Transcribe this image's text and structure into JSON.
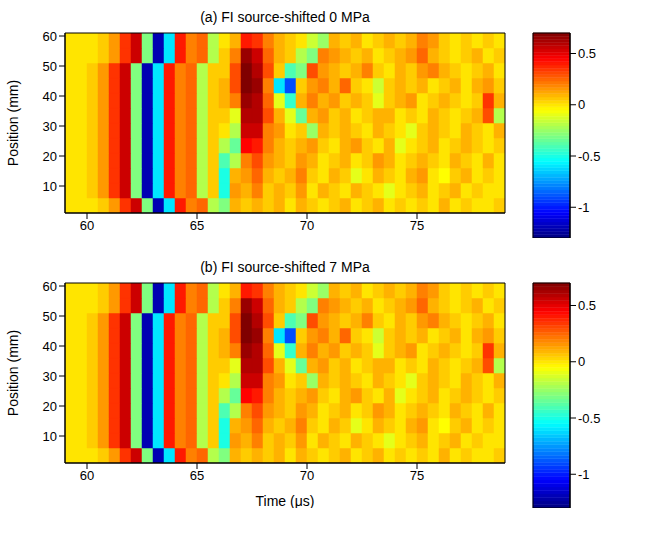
{
  "chart_data": [
    {
      "type": "heatmap",
      "title": "(a) FI source-shifted 0 MPa",
      "y_label": "Position (mm)",
      "xlim": [
        59,
        79
      ],
      "xticks": [
        60,
        65,
        70,
        75
      ],
      "ylim": [
        1,
        61
      ],
      "yticks": [
        10,
        20,
        30,
        40,
        50,
        60
      ],
      "x": [
        59.25,
        59.75,
        60.25,
        60.75,
        61.25,
        61.75,
        62.25,
        62.75,
        63.25,
        63.75,
        64.25,
        64.75,
        65.25,
        65.75,
        66.25,
        66.75,
        67.25,
        67.75,
        68.25,
        68.75,
        69.25,
        69.75,
        70.25,
        70.75,
        71.25,
        71.75,
        72.25,
        72.75,
        73.25,
        73.75,
        74.25,
        74.75,
        75.25,
        75.75,
        76.25,
        76.75,
        77.25,
        77.75,
        78.25,
        78.75
      ],
      "y": [
        3.5,
        8.5,
        13.5,
        18.5,
        23.5,
        28.5,
        33.5,
        38.5,
        43.5,
        48.5,
        53.5,
        58.5
      ],
      "values": [
        [
          0,
          0,
          0,
          0.05,
          0.15,
          0.35,
          0.55,
          -0.3,
          -1.2,
          -0.6,
          0.4,
          0.2,
          0.25,
          -0.2,
          -0.3,
          0.1,
          0.05,
          0.1,
          0.05,
          0.1,
          0,
          0.1,
          0.05,
          0,
          0.05,
          0.1,
          0,
          0.05,
          0.1,
          0,
          0.05,
          0,
          0.05,
          0,
          0.1,
          0,
          0.05,
          0,
          0,
          0.05
        ],
        [
          0,
          0,
          0.05,
          0.15,
          0.35,
          0.55,
          -0.3,
          -1.2,
          -0.6,
          0.4,
          0.2,
          0.25,
          -0.2,
          0.05,
          -0.5,
          0.15,
          0.1,
          0.2,
          0.05,
          0.1,
          0.05,
          0.15,
          0,
          0.1,
          0.05,
          0,
          0.1,
          0.05,
          0,
          -0.1,
          0,
          0.05,
          0.1,
          0,
          0.05,
          0.1,
          0,
          0.05,
          0,
          0
        ],
        [
          0,
          0,
          0.05,
          0.15,
          0.35,
          0.55,
          -0.3,
          -1.2,
          -0.6,
          0.4,
          0.2,
          0.25,
          -0.2,
          0.05,
          -0.5,
          0.1,
          0.15,
          0.25,
          0.1,
          0.05,
          0.1,
          0.2,
          0.05,
          0,
          0.1,
          0.05,
          -0.1,
          0,
          0.1,
          0.05,
          0,
          0.1,
          0.15,
          0,
          -0.05,
          0.05,
          0.1,
          0,
          0.05,
          0
        ],
        [
          0,
          0,
          0.05,
          0.15,
          0.35,
          0.55,
          -0.3,
          -1.2,
          -0.6,
          0.4,
          0.2,
          0.25,
          -0.2,
          0.05,
          -0.4,
          -0.2,
          0.2,
          0.3,
          0.15,
          0.1,
          0.05,
          0.15,
          0.1,
          0,
          0.05,
          0.1,
          0,
          0.05,
          0.15,
          0.1,
          0,
          0.05,
          0.1,
          0.05,
          0,
          0.1,
          0.05,
          0,
          0.1,
          0
        ],
        [
          0,
          0,
          0.05,
          0.15,
          0.35,
          0.55,
          -0.3,
          -1.2,
          -0.6,
          0.4,
          0.2,
          0.25,
          -0.2,
          0.05,
          -0.2,
          -0.35,
          0.45,
          0.4,
          0.2,
          0.1,
          0.05,
          0.1,
          0.15,
          0.05,
          0,
          0.1,
          0.15,
          0.05,
          0,
          0.1,
          -0.1,
          0,
          0.05,
          0.1,
          0,
          0.05,
          0.1,
          0.05,
          0,
          0.05
        ],
        [
          0,
          0,
          0.05,
          0.15,
          0.35,
          0.55,
          -0.3,
          -1.2,
          -0.6,
          0.4,
          0.2,
          0.25,
          -0.2,
          0.05,
          0,
          -0.2,
          0.55,
          0.55,
          0.2,
          0.15,
          0,
          0.05,
          -0.25,
          0.1,
          0.05,
          0.1,
          0.05,
          0,
          0.1,
          0.05,
          0,
          -0.1,
          0.05,
          0.1,
          0.05,
          0,
          0.1,
          0.05,
          0,
          0.1
        ],
        [
          0,
          0,
          0.05,
          0.15,
          0.35,
          0.55,
          -0.3,
          -1.2,
          -0.6,
          0.4,
          0.2,
          0.25,
          -0.2,
          0.05,
          0.05,
          -0.1,
          0.6,
          0.6,
          0.3,
          0.1,
          -0.1,
          -0.35,
          0.1,
          0.15,
          0.05,
          0.1,
          0,
          0.05,
          0.1,
          0.1,
          0,
          0.05,
          0,
          0.1,
          0.05,
          0,
          0.05,
          0.1,
          0.3,
          -0.2
        ],
        [
          0,
          0,
          0.05,
          0.15,
          0.35,
          0.55,
          -0.3,
          -1.2,
          -0.6,
          0.4,
          0.2,
          0.25,
          -0.2,
          0.05,
          0.1,
          0.2,
          0.65,
          0.6,
          0.25,
          -0.1,
          -0.45,
          0.1,
          0.2,
          0.1,
          0.15,
          0.05,
          0.1,
          0.05,
          -0.1,
          0.05,
          0.1,
          0.15,
          0,
          0.05,
          0.1,
          0.05,
          0,
          0.05,
          0.35,
          0.1
        ],
        [
          0,
          0,
          0.05,
          0.15,
          0.35,
          0.55,
          -0.3,
          -1.2,
          -0.6,
          0.4,
          0.2,
          0.25,
          -0.2,
          0.05,
          0.1,
          0.3,
          0.7,
          0.65,
          0.2,
          -0.6,
          -0.9,
          0.05,
          0.15,
          0.2,
          0.1,
          0.25,
          0.05,
          0,
          -0.15,
          0.05,
          0.1,
          0.05,
          0.1,
          0,
          0.05,
          0.1,
          0,
          0.1,
          0.15,
          0.05
        ],
        [
          0,
          0,
          0.05,
          0.15,
          0.35,
          0.55,
          -0.3,
          -1.2,
          -0.6,
          0.4,
          0.2,
          0.25,
          -0.2,
          0.05,
          0.05,
          0.3,
          0.7,
          0.6,
          0.3,
          0.05,
          -0.4,
          -0.3,
          0.3,
          0.15,
          0.1,
          0.05,
          0.1,
          0.2,
          0.05,
          0,
          0.1,
          0.05,
          0.15,
          0.2,
          0.1,
          0.05,
          0,
          0.05,
          0.1,
          0
        ],
        [
          0,
          0,
          0,
          0.05,
          0.15,
          0.35,
          0.55,
          -0.3,
          -1.2,
          -0.6,
          0.4,
          0.2,
          0.25,
          -0.2,
          0.05,
          0.2,
          0.65,
          0.55,
          0.25,
          0.1,
          0.05,
          -0.2,
          -0.3,
          0.2,
          0.15,
          0.1,
          0.05,
          0.1,
          0,
          0.05,
          0.1,
          0.15,
          0.25,
          0.1,
          0.05,
          0,
          0.05,
          0.1,
          0,
          0.05
        ],
        [
          0,
          0,
          0,
          0.05,
          0.15,
          0.35,
          0.55,
          -0.3,
          -1.2,
          -0.6,
          0.4,
          0.2,
          0.25,
          -0.2,
          0,
          0.1,
          0.4,
          0.35,
          0.2,
          0.1,
          0.05,
          0,
          -0.15,
          -0.25,
          0.1,
          0.05,
          0.1,
          0,
          0.05,
          0.1,
          0.05,
          0.1,
          0.2,
          0.15,
          0.05,
          0,
          0.05,
          0,
          0.05,
          0
        ]
      ],
      "colorbar": {
        "range": [
          -1.3,
          0.7
        ],
        "ticks": [
          -1,
          -0.5,
          0,
          0.5
        ]
      }
    },
    {
      "type": "heatmap",
      "title": "(b) FI source-shifted 7 MPa",
      "x_label": "Time (μs)",
      "y_label": "Position (mm)",
      "xlim": [
        59,
        79
      ],
      "xticks": [
        60,
        65,
        70,
        75
      ],
      "ylim": [
        1,
        61
      ],
      "yticks": [
        10,
        20,
        30,
        40,
        50,
        60
      ],
      "x": [
        59.25,
        59.75,
        60.25,
        60.75,
        61.25,
        61.75,
        62.25,
        62.75,
        63.25,
        63.75,
        64.25,
        64.75,
        65.25,
        65.75,
        66.25,
        66.75,
        67.25,
        67.75,
        68.25,
        68.75,
        69.25,
        69.75,
        70.25,
        70.75,
        71.25,
        71.75,
        72.25,
        72.75,
        73.25,
        73.75,
        74.25,
        74.75,
        75.25,
        75.75,
        76.25,
        76.75,
        77.25,
        77.75,
        78.25,
        78.75
      ],
      "y": [
        3.5,
        8.5,
        13.5,
        18.5,
        23.5,
        28.5,
        33.5,
        38.5,
        43.5,
        48.5,
        53.5,
        58.5
      ],
      "values": [
        [
          0,
          0,
          0,
          0.05,
          0.15,
          0.35,
          0.55,
          -0.3,
          -1.2,
          -0.6,
          0.4,
          0.2,
          0.25,
          -0.2,
          -0.3,
          0.1,
          0.05,
          0.1,
          0.05,
          0.1,
          0,
          0.1,
          0.05,
          0,
          0.05,
          0.1,
          0,
          0.05,
          0.1,
          0,
          0.05,
          0,
          0.05,
          0,
          0.1,
          0,
          0.05,
          0,
          0,
          0.05
        ],
        [
          0,
          0,
          0.05,
          0.15,
          0.35,
          0.55,
          -0.3,
          -1.2,
          -0.6,
          0.4,
          0.2,
          0.25,
          -0.2,
          0.05,
          -0.5,
          0.15,
          0.1,
          0.2,
          0.05,
          0.1,
          0.05,
          0.15,
          0,
          0.1,
          0.05,
          0,
          0.1,
          0.05,
          0,
          -0.1,
          0,
          0.05,
          0.1,
          0,
          0.05,
          0.1,
          0,
          0.05,
          0,
          0
        ],
        [
          0,
          0,
          0.05,
          0.15,
          0.35,
          0.55,
          -0.3,
          -1.2,
          -0.6,
          0.4,
          0.2,
          0.25,
          -0.2,
          0.05,
          -0.5,
          0.1,
          0.15,
          0.25,
          0.1,
          0.05,
          0.1,
          0.2,
          0.05,
          0,
          0.1,
          0.05,
          -0.1,
          0,
          0.1,
          0.05,
          0,
          0.1,
          0.15,
          0,
          -0.05,
          0.05,
          0.1,
          0,
          0.05,
          0
        ],
        [
          0,
          0,
          0.05,
          0.15,
          0.35,
          0.55,
          -0.3,
          -1.2,
          -0.6,
          0.4,
          0.2,
          0.25,
          -0.2,
          0.05,
          -0.4,
          -0.2,
          0.2,
          0.3,
          0.15,
          0.1,
          0.05,
          0.15,
          0.1,
          0,
          0.05,
          0.1,
          0,
          0.05,
          0.15,
          0.1,
          0,
          0.05,
          0.1,
          0.05,
          0,
          0.1,
          0.05,
          0,
          0.1,
          0
        ],
        [
          0,
          0,
          0.05,
          0.15,
          0.35,
          0.55,
          -0.3,
          -1.2,
          -0.6,
          0.4,
          0.2,
          0.25,
          -0.2,
          0.05,
          -0.2,
          -0.35,
          0.45,
          0.4,
          0.2,
          0.1,
          0.05,
          0.1,
          0.15,
          0.05,
          0,
          0.1,
          0.15,
          0.05,
          0,
          0.1,
          -0.1,
          0,
          0.05,
          0.1,
          0,
          0.05,
          0.1,
          0.05,
          0,
          0.05
        ],
        [
          0,
          0,
          0.05,
          0.15,
          0.35,
          0.55,
          -0.3,
          -1.2,
          -0.6,
          0.4,
          0.2,
          0.25,
          -0.2,
          0.05,
          0,
          -0.2,
          0.55,
          0.55,
          0.2,
          0.15,
          0,
          0.05,
          -0.25,
          0.1,
          0.05,
          0.1,
          0.05,
          0,
          0.1,
          0.05,
          0,
          -0.1,
          0.05,
          0.1,
          0.05,
          0,
          0.1,
          0.05,
          0,
          0.1
        ],
        [
          0,
          0,
          0.05,
          0.15,
          0.35,
          0.55,
          -0.3,
          -1.2,
          -0.6,
          0.4,
          0.2,
          0.25,
          -0.2,
          0.05,
          0.05,
          -0.1,
          0.6,
          0.6,
          0.3,
          0.1,
          -0.1,
          -0.35,
          0.1,
          0.15,
          0.05,
          0.1,
          0,
          0.05,
          0.1,
          0.1,
          0,
          0.05,
          0,
          0.1,
          0.05,
          0,
          0.05,
          0.1,
          0.3,
          -0.2
        ],
        [
          0,
          0,
          0.05,
          0.15,
          0.35,
          0.55,
          -0.3,
          -1.2,
          -0.6,
          0.4,
          0.2,
          0.25,
          -0.2,
          0.05,
          0.1,
          0.2,
          0.65,
          0.6,
          0.25,
          -0.1,
          -0.45,
          0.1,
          0.2,
          0.1,
          0.15,
          0.05,
          0.1,
          0.05,
          -0.1,
          0.05,
          0.1,
          0.15,
          0,
          0.05,
          0.1,
          0.05,
          0,
          0.05,
          0.35,
          0.1
        ],
        [
          0,
          0,
          0.05,
          0.15,
          0.35,
          0.55,
          -0.3,
          -1.2,
          -0.6,
          0.4,
          0.2,
          0.25,
          -0.2,
          0.05,
          0.1,
          0.3,
          0.7,
          0.65,
          0.2,
          -0.6,
          -0.9,
          0.05,
          0.15,
          0.2,
          0.1,
          0.25,
          0.05,
          0,
          -0.15,
          0.05,
          0.1,
          0.05,
          0.1,
          0,
          0.05,
          0.1,
          0,
          0.1,
          0.15,
          0.05
        ],
        [
          0,
          0,
          0.05,
          0.15,
          0.35,
          0.55,
          -0.3,
          -1.2,
          -0.6,
          0.4,
          0.2,
          0.25,
          -0.2,
          0.05,
          0.05,
          0.3,
          0.7,
          0.6,
          0.3,
          0.05,
          -0.4,
          -0.3,
          0.3,
          0.15,
          0.1,
          0.05,
          0.1,
          0.2,
          0.05,
          0,
          0.1,
          0.05,
          0.15,
          0.2,
          0.1,
          0.05,
          0,
          0.05,
          0.1,
          0
        ],
        [
          0,
          0,
          0,
          0.05,
          0.15,
          0.35,
          0.55,
          -0.3,
          -1.2,
          -0.6,
          0.4,
          0.2,
          0.25,
          -0.2,
          0.05,
          0.2,
          0.65,
          0.55,
          0.25,
          0.1,
          0.05,
          -0.2,
          -0.3,
          0.2,
          0.15,
          0.1,
          0.05,
          0.1,
          0,
          0.05,
          0.1,
          0.15,
          0.25,
          0.1,
          0.05,
          0,
          0.05,
          0.1,
          0,
          0.05
        ],
        [
          0,
          0,
          0,
          0.05,
          0.15,
          0.35,
          0.55,
          -0.3,
          -1.2,
          -0.6,
          0.4,
          0.2,
          0.25,
          -0.2,
          0,
          0.1,
          0.4,
          0.35,
          0.2,
          0.1,
          0.05,
          0,
          -0.15,
          -0.25,
          0.1,
          0.05,
          0.1,
          0,
          0.05,
          0.1,
          0.05,
          0.1,
          0.2,
          0.15,
          0.05,
          0,
          0.05,
          0,
          0.05,
          0
        ]
      ],
      "colorbar": {
        "range": [
          -1.3,
          0.7
        ],
        "ticks": [
          -1,
          -0.5,
          0,
          0.5
        ]
      }
    }
  ]
}
